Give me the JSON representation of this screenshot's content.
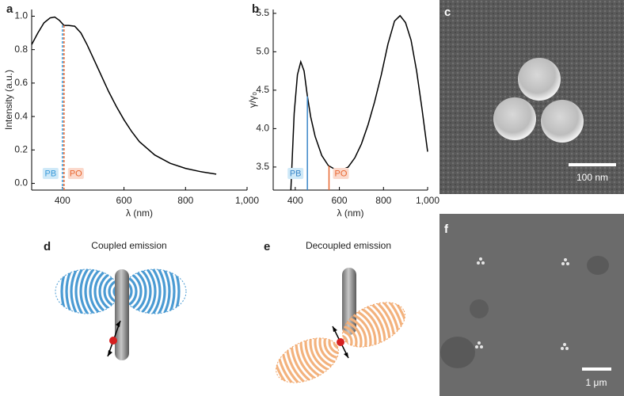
{
  "labels": [
    "a",
    "b",
    "c",
    "d",
    "e",
    "f"
  ],
  "chart_data": [
    {
      "type": "line",
      "xlabel": "λ (nm)",
      "ylabel": "Intensity (a.u.)",
      "xlim": [
        300,
        1000
      ],
      "ylim": [
        -0.04,
        1.04
      ],
      "xticks": [
        400,
        600,
        800,
        {
          "value": 1000,
          "label": "1,000"
        }
      ],
      "yticks": [
        {
          "value": 0,
          "label": "0.0"
        },
        0.2,
        0.4,
        0.6,
        0.8,
        {
          "value": 1,
          "label": "1.0"
        }
      ],
      "series": [
        {
          "color": "#000000",
          "x": [
            300,
            320,
            340,
            360,
            375,
            390,
            405,
            420,
            440,
            460,
            480,
            500,
            525,
            550,
            575,
            600,
            625,
            650,
            700,
            750,
            800,
            850,
            900
          ],
          "values": [
            0.83,
            0.9,
            0.96,
            0.99,
            0.995,
            0.975,
            0.945,
            0.945,
            0.94,
            0.9,
            0.83,
            0.75,
            0.65,
            0.55,
            0.46,
            0.38,
            0.31,
            0.25,
            0.17,
            0.12,
            0.09,
            0.07,
            0.055
          ]
        }
      ],
      "markers": [
        {
          "label": "PB",
          "x": 400,
          "color": "#3a9ad9",
          "box": "#cfe9f8",
          "dashed": true
        },
        {
          "label": "PO",
          "x": 405,
          "color": "#e8662f",
          "box": "#fbd9cc",
          "dashed": true
        }
      ]
    },
    {
      "type": "line",
      "xlabel": "λ (nm)",
      "ylabel": "γ/γ₀",
      "xlim": [
        300,
        1000
      ],
      "ylim": [
        3.2,
        5.55
      ],
      "xticks": [
        400,
        600,
        800,
        {
          "value": 1000,
          "label": "1,000"
        }
      ],
      "yticks": [
        3.5,
        {
          "value": 4,
          "label": "4.0"
        },
        4.5,
        {
          "value": 5,
          "label": "5.0"
        },
        5.5
      ],
      "series": [
        {
          "color": "#000000",
          "x": [
            380,
            395,
            410,
            425,
            440,
            455,
            470,
            490,
            520,
            550,
            580,
            610,
            640,
            670,
            700,
            730,
            760,
            790,
            820,
            850,
            875,
            900,
            925,
            950,
            975,
            1000
          ],
          "values": [
            3.2,
            4.2,
            4.7,
            4.87,
            4.75,
            4.42,
            4.15,
            3.9,
            3.65,
            3.52,
            3.47,
            3.46,
            3.5,
            3.62,
            3.8,
            4.05,
            4.35,
            4.7,
            5.1,
            5.4,
            5.47,
            5.38,
            5.15,
            4.75,
            4.25,
            3.7
          ]
        }
      ],
      "markers": [
        {
          "label": "PB",
          "x": 455,
          "color": "#3a86c8",
          "box": "#cfe9f8",
          "dashed": false
        },
        {
          "label": "PO",
          "x": 553,
          "color": "#e8662f",
          "box": "#fbd9cc",
          "dashed": false
        }
      ]
    }
  ],
  "images": {
    "c": {
      "scale_bar": "100 nm"
    },
    "f": {
      "scale_bar": "1 μm"
    }
  },
  "diagrams": {
    "d": {
      "title": "Coupled emission"
    },
    "e": {
      "title": "Decoupled emission"
    }
  }
}
